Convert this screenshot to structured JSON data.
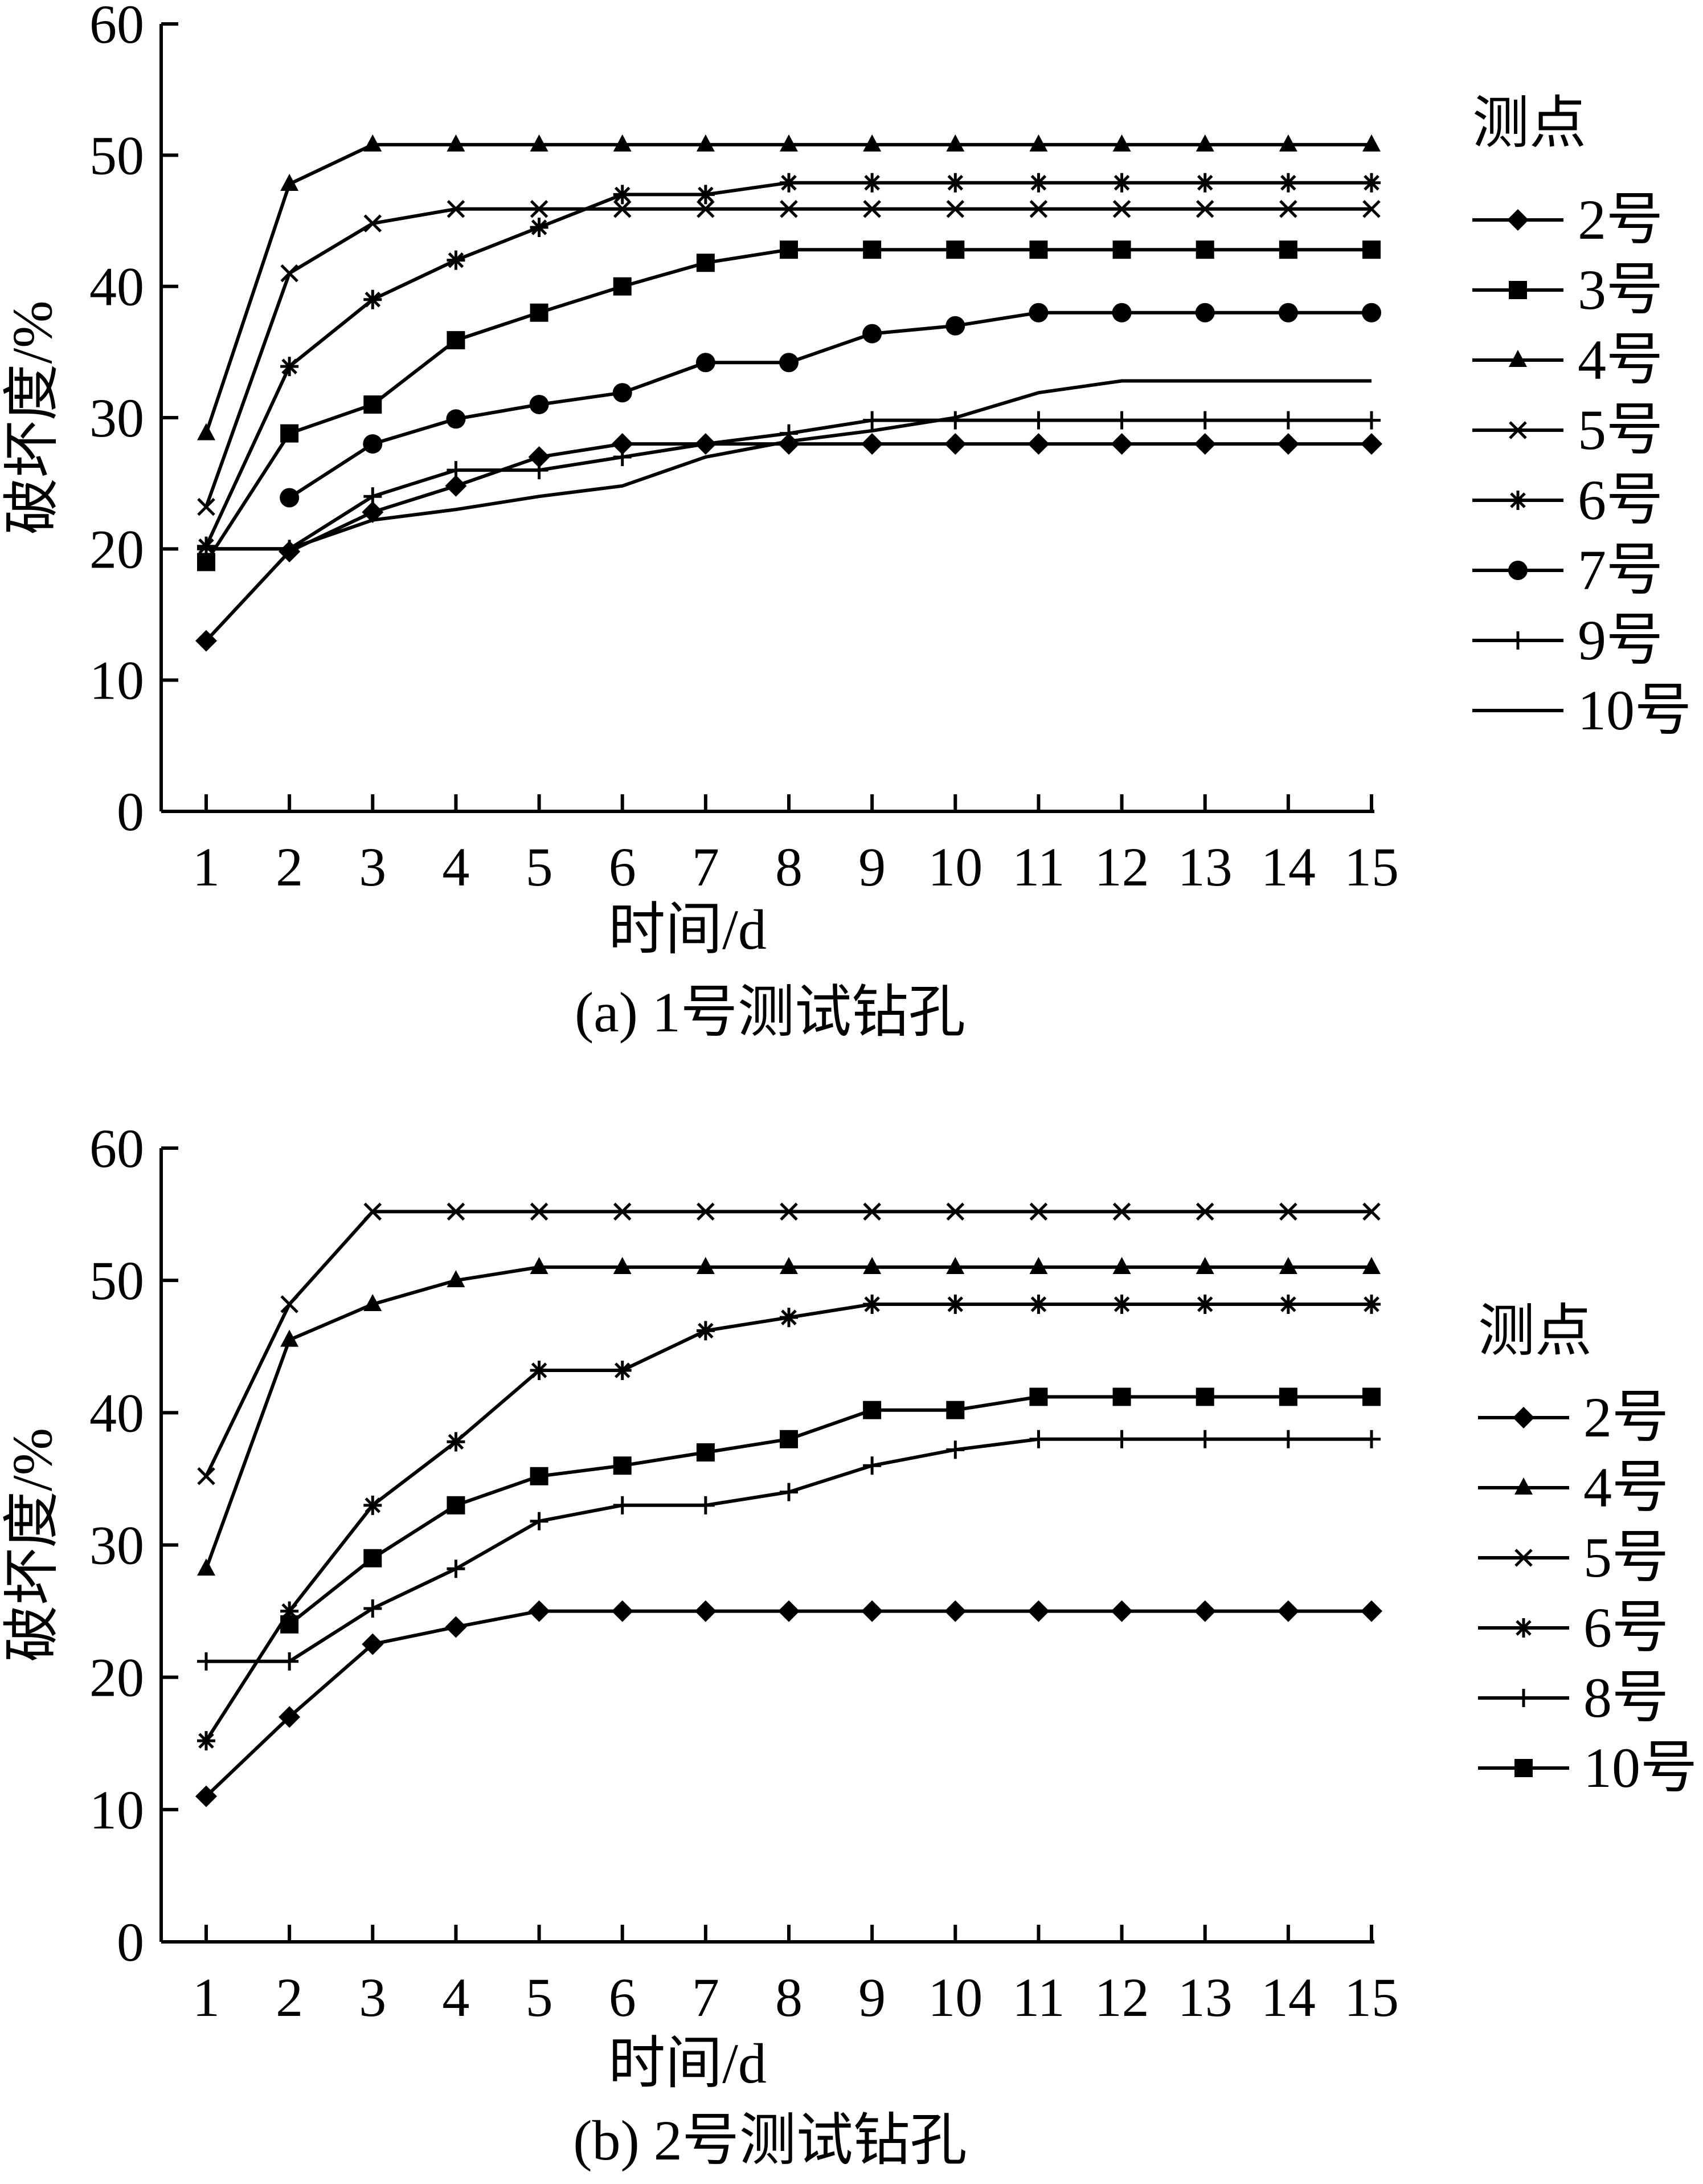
{
  "chart_data": [
    {
      "type": "line",
      "caption": "(a)  1号测试钻孔",
      "xlabel": "时间/d",
      "ylabel": "破坏度/%",
      "xlim": [
        1,
        15
      ],
      "ylim": [
        0,
        60
      ],
      "x_ticks": [
        "1",
        "2",
        "3",
        "4",
        "5",
        "6",
        "7",
        "8",
        "9",
        "10",
        "11",
        "12",
        "13",
        "14",
        "15"
      ],
      "y_ticks": [
        "0",
        "10",
        "20",
        "30",
        "40",
        "50",
        "60"
      ],
      "legend_title": "测点",
      "legend_position": "right",
      "grid": false,
      "series": [
        {
          "name": "2号",
          "marker": "diamond",
          "x": [
            1,
            2,
            3,
            4,
            5,
            6,
            7,
            8,
            9,
            10,
            11,
            12,
            13,
            14,
            15
          ],
          "values": [
            13,
            19.8,
            22.8,
            24.8,
            27,
            28,
            28,
            28,
            28,
            28,
            28,
            28,
            28,
            28,
            28
          ]
        },
        {
          "name": "3号",
          "marker": "square",
          "x": [
            1,
            2,
            3,
            4,
            5,
            6,
            7,
            8,
            9,
            10,
            11,
            12,
            13,
            14,
            15
          ],
          "values": [
            19,
            28.8,
            31,
            35.9,
            38,
            40,
            41.8,
            42.8,
            42.8,
            42.8,
            42.8,
            42.8,
            42.8,
            42.8,
            42.8
          ]
        },
        {
          "name": "4号",
          "marker": "triangle",
          "x": [
            1,
            2,
            3,
            4,
            5,
            6,
            7,
            8,
            9,
            10,
            11,
            12,
            13,
            14,
            15
          ],
          "values": [
            28.8,
            47.8,
            50.8,
            50.8,
            50.8,
            50.8,
            50.8,
            50.8,
            50.8,
            50.8,
            50.8,
            50.8,
            50.8,
            50.8,
            50.8
          ]
        },
        {
          "name": "5号",
          "marker": "x",
          "x": [
            1,
            2,
            3,
            4,
            5,
            6,
            7,
            8,
            9,
            10,
            11,
            12,
            13,
            14,
            15
          ],
          "values": [
            23.2,
            41,
            44.8,
            45.9,
            45.9,
            45.9,
            45.9,
            45.9,
            45.9,
            45.9,
            45.9,
            45.9,
            45.9,
            45.9,
            45.9
          ]
        },
        {
          "name": "6号",
          "marker": "asterisk",
          "x": [
            1,
            2,
            3,
            4,
            5,
            6,
            7,
            8,
            9,
            10,
            11,
            12,
            13,
            14,
            15
          ],
          "values": [
            20.2,
            33.9,
            39,
            42,
            44.5,
            47,
            47,
            47.9,
            47.9,
            47.9,
            47.9,
            47.9,
            47.9,
            47.9,
            47.9
          ]
        },
        {
          "name": "7号",
          "marker": "circle",
          "x": [
            2,
            3,
            4,
            5,
            6,
            7,
            8,
            9,
            10,
            11,
            12,
            13,
            14,
            15
          ],
          "values": [
            23.9,
            28,
            29.9,
            31,
            31.9,
            34.2,
            34.2,
            36.4,
            37,
            38,
            38,
            38,
            38,
            38
          ]
        },
        {
          "name": "9号",
          "marker": "plus",
          "x": [
            1,
            2,
            3,
            4,
            5,
            6,
            7,
            8,
            9,
            10,
            11,
            12,
            13,
            14,
            15
          ],
          "values": [
            20,
            20,
            24,
            26,
            26,
            27,
            28,
            28.8,
            29.8,
            29.8,
            29.8,
            29.8,
            29.8,
            29.8,
            29.8
          ]
        },
        {
          "name": "10号",
          "marker": "none",
          "x": [
            1,
            2,
            3,
            4,
            5,
            6,
            7,
            8,
            9,
            10,
            11,
            12,
            13,
            14,
            15
          ],
          "values": [
            20,
            20,
            22.2,
            23,
            24,
            24.8,
            27,
            28.2,
            29,
            30,
            31.9,
            32.8,
            32.8,
            32.8,
            32.8
          ]
        }
      ]
    },
    {
      "type": "line",
      "caption": "(b)  2号测试钻孔",
      "xlabel": "时间/d",
      "ylabel": "破坏度/%",
      "xlim": [
        1,
        15
      ],
      "ylim": [
        0,
        60
      ],
      "x_ticks": [
        "1",
        "2",
        "3",
        "4",
        "5",
        "6",
        "7",
        "8",
        "9",
        "10",
        "11",
        "12",
        "13",
        "14",
        "15"
      ],
      "y_ticks": [
        "0",
        "10",
        "20",
        "30",
        "40",
        "50",
        "60"
      ],
      "legend_title": "测点",
      "legend_position": "right",
      "grid": false,
      "series": [
        {
          "name": "2号",
          "marker": "diamond",
          "x": [
            1,
            2,
            3,
            4,
            5,
            6,
            7,
            8,
            9,
            10,
            11,
            12,
            13,
            14,
            15
          ],
          "values": [
            11,
            17,
            22.5,
            23.8,
            25,
            25,
            25,
            25,
            25,
            25,
            25,
            25,
            25,
            25,
            25
          ]
        },
        {
          "name": "4号",
          "marker": "triangle",
          "x": [
            1,
            2,
            3,
            4,
            5,
            6,
            7,
            8,
            9,
            10,
            11,
            12,
            13,
            14,
            15
          ],
          "values": [
            28.2,
            45.5,
            48.2,
            50,
            51,
            51,
            51,
            51,
            51,
            51,
            51,
            51,
            51,
            51,
            51
          ]
        },
        {
          "name": "5号",
          "marker": "x",
          "x": [
            1,
            2,
            3,
            4,
            5,
            6,
            7,
            8,
            9,
            10,
            11,
            12,
            13,
            14,
            15
          ],
          "values": [
            35.2,
            48.2,
            55.2,
            55.2,
            55.2,
            55.2,
            55.2,
            55.2,
            55.2,
            55.2,
            55.2,
            55.2,
            55.2,
            55.2,
            55.2
          ]
        },
        {
          "name": "6号",
          "marker": "asterisk",
          "x": [
            1,
            2,
            3,
            4,
            5,
            6,
            7,
            8,
            9,
            10,
            11,
            12,
            13,
            14,
            15
          ],
          "values": [
            15.2,
            25,
            33,
            37.8,
            43.2,
            43.2,
            46.2,
            47.2,
            48.2,
            48.2,
            48.2,
            48.2,
            48.2,
            48.2,
            48.2
          ]
        },
        {
          "name": "8号",
          "marker": "plus",
          "x": [
            1,
            2,
            3,
            4,
            5,
            6,
            7,
            8,
            9,
            10,
            11,
            12,
            13,
            14,
            15
          ],
          "values": [
            21.2,
            21.2,
            25.2,
            28.2,
            31.8,
            33,
            33,
            34,
            36,
            37.2,
            38,
            38,
            38,
            38,
            38
          ]
        },
        {
          "name": "10号",
          "marker": "square",
          "x": [
            2,
            3,
            4,
            5,
            6,
            7,
            8,
            9,
            10,
            11,
            12,
            13,
            14,
            15
          ],
          "values": [
            24,
            29,
            33,
            35.2,
            36,
            37,
            38,
            40.2,
            40.2,
            41.2,
            41.2,
            41.2,
            41.2,
            41.2
          ]
        }
      ]
    }
  ]
}
